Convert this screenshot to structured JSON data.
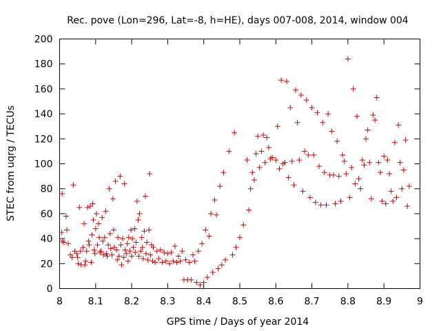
{
  "chart_data": {
    "type": "scatter",
    "title": "Rec. pove (Lon=296, Lat=-8, h=HE), days 007-008, 2014, window 004",
    "xlabel": "GPS time / Days of year 2014",
    "ylabel": "STEC from uqrg / TECUs",
    "xlim": [
      8,
      9
    ],
    "ylim": [
      0,
      200
    ],
    "xticks": [
      8,
      8.1,
      8.2,
      8.3,
      8.4,
      8.5,
      8.6,
      8.7,
      8.8,
      8.9,
      9
    ],
    "xtick_labels": [
      "8",
      "8.1",
      "8.2",
      "8.3",
      "8.4",
      "8.5",
      "8.6",
      "8.7",
      "8.8",
      "8.9",
      "9"
    ],
    "yticks": [
      0,
      20,
      40,
      60,
      80,
      100,
      120,
      140,
      160,
      180,
      200
    ],
    "ytick_labels": [
      "0",
      "20",
      "40",
      "60",
      "80",
      "100",
      "120",
      "140",
      "160",
      "180",
      "200"
    ],
    "grid": false,
    "marker": "+",
    "marker_color": "#cc0000",
    "series": [
      {
        "name": "STEC",
        "points": [
          [
            8.007,
            76
          ],
          [
            8.006,
            45
          ],
          [
            8.008,
            38
          ],
          [
            8.012,
            37
          ],
          [
            8.018,
            58
          ],
          [
            8.02,
            47
          ],
          [
            8.024,
            36
          ],
          [
            8.03,
            27
          ],
          [
            8.035,
            25
          ],
          [
            8.038,
            83
          ],
          [
            8.042,
            30
          ],
          [
            8.048,
            28
          ],
          [
            8.05,
            25
          ],
          [
            8.052,
            20
          ],
          [
            8.055,
            65
          ],
          [
            8.058,
            30
          ],
          [
            8.06,
            19
          ],
          [
            8.065,
            33
          ],
          [
            8.068,
            52
          ],
          [
            8.07,
            19
          ],
          [
            8.072,
            22
          ],
          [
            8.075,
            30
          ],
          [
            8.078,
            65
          ],
          [
            8.08,
            38
          ],
          [
            8.082,
            35
          ],
          [
            8.085,
            66
          ],
          [
            8.088,
            21
          ],
          [
            8.09,
            43
          ],
          [
            8.092,
            68
          ],
          [
            8.094,
            55
          ],
          [
            8.096,
            31
          ],
          [
            8.098,
            28
          ],
          [
            8.1,
            48
          ],
          [
            8.102,
            60
          ],
          [
            8.105,
            35
          ],
          [
            8.108,
            52
          ],
          [
            8.11,
            41
          ],
          [
            8.112,
            29
          ],
          [
            8.115,
            30
          ],
          [
            8.118,
            57
          ],
          [
            8.12,
            38
          ],
          [
            8.122,
            27
          ],
          [
            8.125,
            41
          ],
          [
            8.128,
            62
          ],
          [
            8.13,
            28
          ],
          [
            8.132,
            26
          ],
          [
            8.135,
            35
          ],
          [
            8.138,
            80
          ],
          [
            8.14,
            44
          ],
          [
            8.142,
            32
          ],
          [
            8.145,
            27
          ],
          [
            8.148,
            72
          ],
          [
            8.15,
            47
          ],
          [
            8.152,
            33
          ],
          [
            8.155,
            86
          ],
          [
            8.158,
            31
          ],
          [
            8.16,
            23
          ],
          [
            8.162,
            41
          ],
          [
            8.165,
            26
          ],
          [
            8.168,
            90
          ],
          [
            8.17,
            35
          ],
          [
            8.172,
            19
          ],
          [
            8.175,
            40
          ],
          [
            8.178,
            25
          ],
          [
            8.18,
            84
          ],
          [
            8.182,
            31
          ],
          [
            8.185,
            28
          ],
          [
            8.188,
            36
          ],
          [
            8.19,
            22
          ],
          [
            8.192,
            41
          ],
          [
            8.195,
            30
          ],
          [
            8.198,
            47
          ],
          [
            8.2,
            26
          ],
          [
            8.202,
            40
          ],
          [
            8.205,
            33
          ],
          [
            8.208,
            48
          ],
          [
            8.21,
            29
          ],
          [
            8.212,
            37
          ],
          [
            8.215,
            70
          ],
          [
            8.218,
            55
          ],
          [
            8.22,
            26
          ],
          [
            8.222,
            60
          ],
          [
            8.225,
            30
          ],
          [
            8.228,
            41
          ],
          [
            8.23,
            33
          ],
          [
            8.232,
            24
          ],
          [
            8.235,
            46
          ],
          [
            8.238,
            74
          ],
          [
            8.24,
            28
          ],
          [
            8.242,
            37
          ],
          [
            8.245,
            23
          ],
          [
            8.248,
            47
          ],
          [
            8.25,
            92
          ],
          [
            8.252,
            27
          ],
          [
            8.255,
            35
          ],
          [
            8.258,
            22
          ],
          [
            8.26,
            33
          ],
          [
            8.265,
            21
          ],
          [
            8.27,
            30
          ],
          [
            8.275,
            24
          ],
          [
            8.28,
            31
          ],
          [
            8.285,
            21
          ],
          [
            8.29,
            29
          ],
          [
            8.295,
            22
          ],
          [
            8.3,
            28
          ],
          [
            8.305,
            20
          ],
          [
            8.31,
            29
          ],
          [
            8.315,
            22
          ],
          [
            8.32,
            34
          ],
          [
            8.325,
            21
          ],
          [
            8.33,
            26
          ],
          [
            8.335,
            22
          ],
          [
            8.34,
            30
          ],
          [
            8.345,
            7
          ],
          [
            8.35,
            23
          ],
          [
            8.355,
            7
          ],
          [
            8.36,
            21
          ],
          [
            8.365,
            7
          ],
          [
            8.37,
            27
          ],
          [
            8.375,
            22
          ],
          [
            8.38,
            5
          ],
          [
            8.385,
            30
          ],
          [
            8.39,
            3
          ],
          [
            8.395,
            36
          ],
          [
            8.4,
            5
          ],
          [
            8.405,
            47
          ],
          [
            8.41,
            9
          ],
          [
            8.415,
            42
          ],
          [
            8.42,
            60
          ],
          [
            8.425,
            13
          ],
          [
            8.43,
            71
          ],
          [
            8.435,
            59
          ],
          [
            8.44,
            16
          ],
          [
            8.445,
            82
          ],
          [
            8.45,
            19
          ],
          [
            8.455,
            93
          ],
          [
            8.46,
            23
          ],
          [
            8.47,
            110
          ],
          [
            8.48,
            27
          ],
          [
            8.485,
            125
          ],
          [
            8.49,
            33
          ],
          [
            8.5,
            41
          ],
          [
            8.51,
            51
          ],
          [
            8.52,
            103
          ],
          [
            8.525,
            63
          ],
          [
            8.53,
            80
          ],
          [
            8.535,
            93
          ],
          [
            8.54,
            87
          ],
          [
            8.545,
            108
          ],
          [
            8.55,
            122
          ],
          [
            8.555,
            97
          ],
          [
            8.56,
            110
          ],
          [
            8.565,
            123
          ],
          [
            8.57,
            101
          ],
          [
            8.575,
            121
          ],
          [
            8.58,
            113
          ],
          [
            8.585,
            104
          ],
          [
            8.59,
            105
          ],
          [
            8.6,
            103
          ],
          [
            8.605,
            130
          ],
          [
            8.61,
            96
          ],
          [
            8.615,
            167
          ],
          [
            8.62,
            100
          ],
          [
            8.625,
            101
          ],
          [
            8.63,
            166
          ],
          [
            8.635,
            89
          ],
          [
            8.64,
            145
          ],
          [
            8.645,
            102
          ],
          [
            8.65,
            83
          ],
          [
            8.655,
            159
          ],
          [
            8.66,
            133
          ],
          [
            8.665,
            103
          ],
          [
            8.67,
            155
          ],
          [
            8.675,
            78
          ],
          [
            8.68,
            110
          ],
          [
            8.685,
            151
          ],
          [
            8.69,
            107
          ],
          [
            8.695,
            73
          ],
          [
            8.7,
            145
          ],
          [
            8.705,
            107
          ],
          [
            8.71,
            69
          ],
          [
            8.715,
            141
          ],
          [
            8.72,
            98
          ],
          [
            8.725,
            67
          ],
          [
            8.73,
            133
          ],
          [
            8.735,
            93
          ],
          [
            8.74,
            67
          ],
          [
            8.745,
            140
          ],
          [
            8.75,
            91
          ],
          [
            8.755,
            126
          ],
          [
            8.76,
            91
          ],
          [
            8.765,
            68
          ],
          [
            8.77,
            118
          ],
          [
            8.775,
            90
          ],
          [
            8.78,
            70
          ],
          [
            8.785,
            107
          ],
          [
            8.79,
            102
          ],
          [
            8.795,
            92
          ],
          [
            8.8,
            184
          ],
          [
            8.805,
            73
          ],
          [
            8.81,
            97
          ],
          [
            8.815,
            160
          ],
          [
            8.82,
            84
          ],
          [
            8.825,
            138
          ],
          [
            8.83,
            88
          ],
          [
            8.835,
            80
          ],
          [
            8.84,
            103
          ],
          [
            8.845,
            99
          ],
          [
            8.85,
            120
          ],
          [
            8.855,
            127
          ],
          [
            8.86,
            101
          ],
          [
            8.865,
            72
          ],
          [
            8.87,
            139
          ],
          [
            8.875,
            135
          ],
          [
            8.88,
            153
          ],
          [
            8.885,
            101
          ],
          [
            8.89,
            93
          ],
          [
            8.895,
            70
          ],
          [
            8.9,
            106
          ],
          [
            8.905,
            68
          ],
          [
            8.91,
            103
          ],
          [
            8.915,
            92
          ],
          [
            8.92,
            78
          ],
          [
            8.925,
            70
          ],
          [
            8.93,
            117
          ],
          [
            8.935,
            73
          ],
          [
            8.94,
            131
          ],
          [
            8.945,
            101
          ],
          [
            8.95,
            80
          ],
          [
            8.955,
            95
          ],
          [
            8.96,
            119
          ],
          [
            8.965,
            66
          ],
          [
            8.97,
            82
          ]
        ]
      }
    ]
  }
}
